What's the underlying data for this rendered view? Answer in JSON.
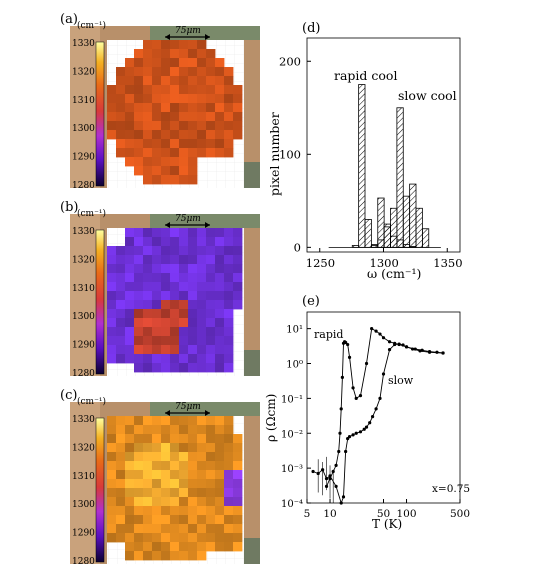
{
  "maps": [
    {
      "label": "(a)",
      "unit": "(cm⁻¹)",
      "scalebar": "75μm",
      "base": "#c8501a"
    },
    {
      "label": "(b)",
      "unit": "(cm⁻¹)",
      "scalebar": "75μm",
      "base": "#6a2fd0"
    },
    {
      "label": "(c)",
      "unit": "(cm⁻¹)",
      "scalebar": "75μm",
      "base": "#d9861f"
    }
  ],
  "colorbar_ticks": [
    "1330",
    "1320",
    "1310",
    "1300",
    "1290",
    "1280"
  ],
  "chart_data": [
    {
      "type": "bar",
      "panel": "(d)",
      "xlabel": "ω  (cm⁻¹)",
      "ylabel": "pixel number",
      "xlim": [
        1240,
        1360
      ],
      "ylim": [
        -5,
        225
      ],
      "xticks": [
        1250,
        1300,
        1350
      ],
      "yticks": [
        0,
        100,
        200
      ],
      "annotations": [
        "rapid  cool",
        "slow  cool"
      ],
      "series": [
        {
          "x": [
            1278,
            1283,
            1288,
            1293,
            1298,
            1303,
            1308,
            1313,
            1318,
            1323,
            1328
          ],
          "values": [
            2,
            175,
            30,
            3,
            53,
            22,
            12,
            8,
            3,
            1,
            0
          ]
        },
        {
          "x": [
            1293,
            1298,
            1303,
            1308,
            1313,
            1318,
            1323,
            1328,
            1333
          ],
          "values": [
            2,
            8,
            25,
            42,
            150,
            55,
            68,
            42,
            20
          ]
        }
      ]
    },
    {
      "type": "line",
      "panel": "(e)",
      "xlabel": "T (K)",
      "ylabel": "ρ (Ωcm)",
      "xscale": "log",
      "yscale": "log",
      "xlim": [
        5,
        500
      ],
      "ylim": [
        0.0001,
        30
      ],
      "xticks": [
        5,
        10,
        50,
        100,
        500
      ],
      "yticks": [
        "10¹",
        "10⁰",
        "10⁻¹",
        "10⁻²",
        "10⁻³",
        "10⁻⁴"
      ],
      "annotations": [
        "rapid",
        "slow",
        "x=0.75"
      ],
      "series": [
        {
          "x": [
            9,
            10,
            11,
            12,
            13,
            13.5,
            14,
            14.5,
            15,
            15.5,
            16,
            17,
            18,
            20,
            22,
            25,
            30,
            35,
            40,
            45,
            50,
            60,
            70,
            80,
            100,
            130,
            160,
            200,
            250,
            300
          ],
          "values": [
            0.0003,
            0.0005,
            0.0008,
            0.0012,
            0.003,
            0.01,
            0.05,
            0.4,
            3.8,
            4.2,
            4.0,
            3.5,
            1.5,
            0.2,
            0.1,
            0.12,
            1.0,
            10,
            8.5,
            7.0,
            5.5,
            4.2,
            3.8,
            3.5,
            3.0,
            2.6,
            2.4,
            2.2,
            2.1,
            2.0
          ]
        },
        {
          "x": [
            6,
            7,
            8,
            9,
            10,
            12,
            14,
            15,
            16,
            17,
            18,
            20,
            22,
            25,
            28,
            30,
            33,
            36,
            40,
            45,
            50,
            60,
            70,
            80,
            90,
            100,
            120,
            150,
            200,
            300
          ],
          "values": [
            0.0008,
            0.0007,
            0.0009,
            0.0005,
            0.0006,
            0.0003,
            0.0001,
            0.00015,
            0.003,
            0.007,
            0.008,
            0.009,
            0.01,
            0.011,
            0.013,
            0.015,
            0.02,
            0.03,
            0.05,
            0.1,
            0.5,
            2.5,
            3.5,
            3.6,
            3.4,
            3.0,
            2.6,
            2.3,
            2.1,
            2.0
          ]
        }
      ]
    }
  ]
}
